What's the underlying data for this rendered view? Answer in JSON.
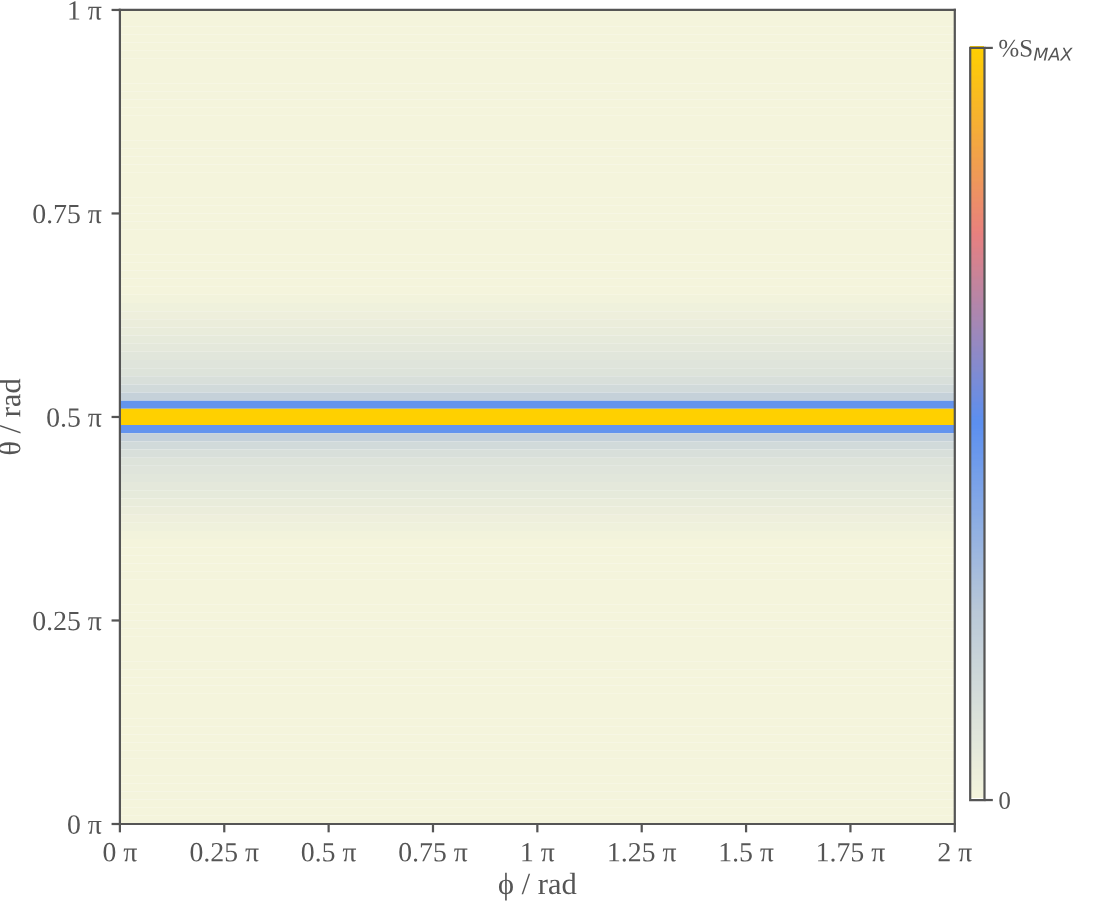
{
  "chart_data": {
    "type": "heatmap",
    "xlabel": "ϕ / rad",
    "ylabel": "θ / rad",
    "xlim": [
      0,
      6.283185
    ],
    "ylim": [
      0,
      3.141593
    ],
    "xticks": [
      {
        "value": 0,
        "label": "0 π"
      },
      {
        "value": 0.785398,
        "label": "0.25 π"
      },
      {
        "value": 1.570796,
        "label": "0.5 π"
      },
      {
        "value": 2.356194,
        "label": "0.75 π"
      },
      {
        "value": 3.141593,
        "label": "1 π"
      },
      {
        "value": 3.926991,
        "label": "1.25 π"
      },
      {
        "value": 4.712389,
        "label": "1.5 π"
      },
      {
        "value": 5.497787,
        "label": "1.75 π"
      },
      {
        "value": 6.283185,
        "label": "2 π"
      }
    ],
    "yticks": [
      {
        "value": 0,
        "label": "0 π"
      },
      {
        "value": 0.785398,
        "label": "0.25 π"
      },
      {
        "value": 1.570796,
        "label": "0.5 π"
      },
      {
        "value": 2.356194,
        "label": "0.75 π"
      },
      {
        "value": 3.141593,
        "label": "1 π"
      }
    ],
    "clim": [
      0,
      1
    ],
    "cticks": [
      0,
      {
        "value": 1,
        "label": "%S$_{MAX}$"
      }
    ],
    "colors": [
      "#f4f4dc",
      "#b9c8d8",
      "#5b8ff0",
      "#e88080",
      "#ffd000"
    ],
    "grid": false,
    "cells": [
      [
        0
      ],
      [
        0
      ],
      [
        0
      ],
      [
        0
      ],
      [
        0
      ],
      [
        0
      ],
      [
        0
      ],
      [
        0
      ],
      [
        0
      ],
      [
        0
      ],
      [
        0
      ],
      [
        0
      ],
      [
        0
      ],
      [
        0
      ],
      [
        0
      ],
      [
        0
      ],
      [
        0
      ],
      [
        0
      ],
      [
        0
      ],
      [
        0
      ],
      [
        0
      ],
      [
        0
      ],
      [
        0
      ],
      [
        0
      ],
      [
        0
      ],
      [
        0
      ],
      [
        0
      ],
      [
        0
      ],
      [
        0
      ],
      [
        0
      ],
      [
        0
      ],
      [
        0
      ],
      [
        0
      ],
      [
        0
      ],
      [
        0
      ],
      [
        0.01
      ],
      [
        0.02
      ],
      [
        0.03
      ],
      [
        0.04
      ],
      [
        0.05
      ],
      [
        0.06
      ],
      [
        0.07
      ],
      [
        0.08
      ],
      [
        0.09
      ],
      [
        0.1
      ],
      [
        0.12
      ],
      [
        0.15
      ],
      [
        0.2
      ],
      [
        0.48
      ],
      [
        1
      ],
      [
        1
      ],
      [
        0.48
      ],
      [
        0.2
      ],
      [
        0.15
      ],
      [
        0.12
      ],
      [
        0.1
      ],
      [
        0.09
      ],
      [
        0.08
      ],
      [
        0.07
      ],
      [
        0.06
      ],
      [
        0.05
      ],
      [
        0.04
      ],
      [
        0.03
      ],
      [
        0.02
      ],
      [
        0.01
      ],
      [
        0
      ],
      [
        0
      ],
      [
        0
      ],
      [
        0
      ],
      [
        0
      ],
      [
        0
      ],
      [
        0
      ],
      [
        0
      ],
      [
        0
      ],
      [
        0
      ],
      [
        0
      ],
      [
        0
      ],
      [
        0
      ],
      [
        0
      ],
      [
        0
      ],
      [
        0
      ],
      [
        0
      ],
      [
        0
      ],
      [
        0
      ],
      [
        0
      ],
      [
        0
      ],
      [
        0
      ],
      [
        0
      ],
      [
        0
      ],
      [
        0
      ],
      [
        0
      ],
      [
        0
      ],
      [
        0
      ],
      [
        0
      ],
      [
        0
      ],
      [
        0
      ],
      [
        0
      ],
      [
        0
      ],
      [
        0
      ],
      [
        0
      ]
    ]
  }
}
